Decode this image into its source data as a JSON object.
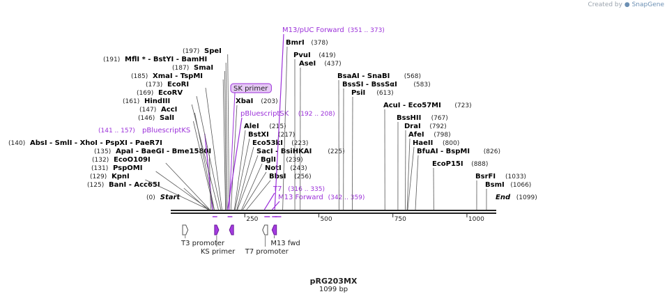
{
  "credit": {
    "prefix": "Created by",
    "brand": "SnapGene",
    "logo_icon": "snapgene-logo-icon"
  },
  "plasmid": {
    "name": "pRG203MX",
    "length_label": "1099 bp"
  },
  "scale": {
    "min": 0,
    "max": 1099,
    "tick_labels": [
      "250",
      "500",
      "750",
      "1000"
    ],
    "tick_values": [
      250,
      500,
      750,
      1000
    ]
  },
  "colors": {
    "enzyme": "#000000",
    "primer": "#9b30d9",
    "feature_fill": "#a43be0",
    "line": "#555555",
    "backbone": "#222222"
  },
  "sites": [
    {
      "kind": "enzyme",
      "pos": "(0)",
      "label": "Start",
      "italic": true,
      "bp": 0
    },
    {
      "kind": "enzyme",
      "pos": "(125)",
      "label": "BanI - Acc65I",
      "bp": 125
    },
    {
      "kind": "enzyme",
      "pos": "(129)",
      "label": "KpnI",
      "bp": 129
    },
    {
      "kind": "enzyme",
      "pos": "(131)",
      "label": "PspOMI",
      "bp": 131
    },
    {
      "kind": "enzyme",
      "pos": "(132)",
      "label": "EcoO109I",
      "bp": 132
    },
    {
      "kind": "enzyme",
      "pos": "(135)",
      "label": "ApaI - BaeGI - Bme1580I",
      "bp": 135
    },
    {
      "kind": "enzyme",
      "pos": "(140)",
      "label": "AbsI - SmlI - XhoI - PspXI - PaeR7I",
      "bp": 140
    },
    {
      "kind": "primer",
      "pos": "(141 .. 157)",
      "label": "pBluescriptKS",
      "bp": 141,
      "bp_end": 157
    },
    {
      "kind": "enzyme",
      "pos": "(146)",
      "label": "SalI",
      "bp": 146
    },
    {
      "kind": "enzyme",
      "pos": "(147)",
      "label": "AccI",
      "bp": 147
    },
    {
      "kind": "enzyme",
      "pos": "(161)",
      "label": "HindIII",
      "bp": 161
    },
    {
      "kind": "enzyme",
      "pos": "(169)",
      "label": "EcoRV",
      "bp": 169
    },
    {
      "kind": "enzyme",
      "pos": "(173)",
      "label": "EcoRI",
      "bp": 173
    },
    {
      "kind": "enzyme",
      "pos": "(185)",
      "label": "XmaI - TspMI",
      "bp": 185
    },
    {
      "kind": "enzyme",
      "pos": "(187)",
      "label": "SmaI",
      "bp": 187
    },
    {
      "kind": "enzyme",
      "pos": "(191)",
      "label": "MflI * - BstYI - BamHI",
      "bp": 191
    },
    {
      "kind": "enzyme",
      "pos": "(197)",
      "label": "SpeI",
      "bp": 197
    },
    {
      "kind": "box",
      "pos": "",
      "label": "SK primer",
      "bp": 197
    },
    {
      "kind": "enzyme",
      "pos": "(203)",
      "label": "XbaI",
      "bp": 203
    },
    {
      "kind": "primer",
      "pos": "(192 .. 208)",
      "label": "pBluescriptSK",
      "bp": 192,
      "bp_end": 208
    },
    {
      "kind": "enzyme",
      "pos": "(215)",
      "label": "AleI",
      "bp": 215
    },
    {
      "kind": "enzyme",
      "pos": "(217)",
      "label": "BstXI",
      "bp": 217
    },
    {
      "kind": "enzyme",
      "pos": "(223)",
      "label": "Eco53kI",
      "bp": 223
    },
    {
      "kind": "enzyme",
      "pos": "(225)",
      "label": "SacI - BsiHKAI",
      "bp": 225
    },
    {
      "kind": "enzyme",
      "pos": "(239)",
      "label": "BglI",
      "bp": 239
    },
    {
      "kind": "enzyme",
      "pos": "(243)",
      "label": "NotI",
      "bp": 243
    },
    {
      "kind": "enzyme",
      "pos": "(256)",
      "label": "BbsI",
      "bp": 256
    },
    {
      "kind": "primer",
      "pos": "(316 .. 335)",
      "label": "T7",
      "bp": 316,
      "bp_end": 335
    },
    {
      "kind": "primer",
      "pos": "(342 .. 359)",
      "label": "M13 Forward",
      "bp": 342,
      "bp_end": 359
    },
    {
      "kind": "primer",
      "pos": "(351 .. 373)",
      "label": "M13/pUC Forward",
      "bp": 351,
      "bp_end": 373
    },
    {
      "kind": "enzyme",
      "pos": "(378)",
      "label": "BmrI",
      "bp": 378
    },
    {
      "kind": "enzyme",
      "pos": "(419)",
      "label": "PvuI",
      "bp": 419
    },
    {
      "kind": "enzyme",
      "pos": "(437)",
      "label": "AseI",
      "bp": 437
    },
    {
      "kind": "enzyme",
      "pos": "(568)",
      "label": "BsaAI - SnaBI",
      "bp": 568
    },
    {
      "kind": "enzyme",
      "pos": "(583)",
      "label": "BssSI - BssSαI",
      "bp": 583
    },
    {
      "kind": "enzyme",
      "pos": "(613)",
      "label": "PsiI",
      "bp": 613
    },
    {
      "kind": "enzyme",
      "pos": "(723)",
      "label": "AcuI - Eco57MI",
      "bp": 723
    },
    {
      "kind": "enzyme",
      "pos": "(767)",
      "label": "BssHII",
      "bp": 767
    },
    {
      "kind": "enzyme",
      "pos": "(792)",
      "label": "DraI",
      "bp": 792
    },
    {
      "kind": "enzyme",
      "pos": "(798)",
      "label": "AfeI",
      "bp": 798
    },
    {
      "kind": "enzyme",
      "pos": "(800)",
      "label": "HaeII",
      "bp": 800
    },
    {
      "kind": "enzyme",
      "pos": "(826)",
      "label": "BfuAI - BspMI",
      "bp": 826
    },
    {
      "kind": "enzyme",
      "pos": "(888)",
      "label": "EcoP15I",
      "bp": 888
    },
    {
      "kind": "enzyme",
      "pos": "(1033)",
      "label": "BsrFI",
      "bp": 1033
    },
    {
      "kind": "enzyme",
      "pos": "(1066)",
      "label": "BsmI",
      "bp": 1066
    },
    {
      "kind": "enzyme",
      "pos": "(1099)",
      "label": "End",
      "italic": true,
      "bp": 1099
    }
  ],
  "features": [
    {
      "name": "T3 promoter",
      "type": "promoter",
      "start": 40,
      "end": 58,
      "dir": "fwd"
    },
    {
      "name": "KS primer",
      "type": "primer_bind",
      "start": 148,
      "end": 162,
      "dir": "fwd"
    },
    {
      "name": "",
      "type": "primer_bind",
      "start": 198,
      "end": 212,
      "dir": "rev"
    },
    {
      "name": "T7 promoter",
      "type": "promoter",
      "start": 310,
      "end": 327,
      "dir": "rev"
    },
    {
      "name": "M13 fwd",
      "type": "primer_bind",
      "start": 342,
      "end": 357,
      "dir": "rev"
    }
  ]
}
